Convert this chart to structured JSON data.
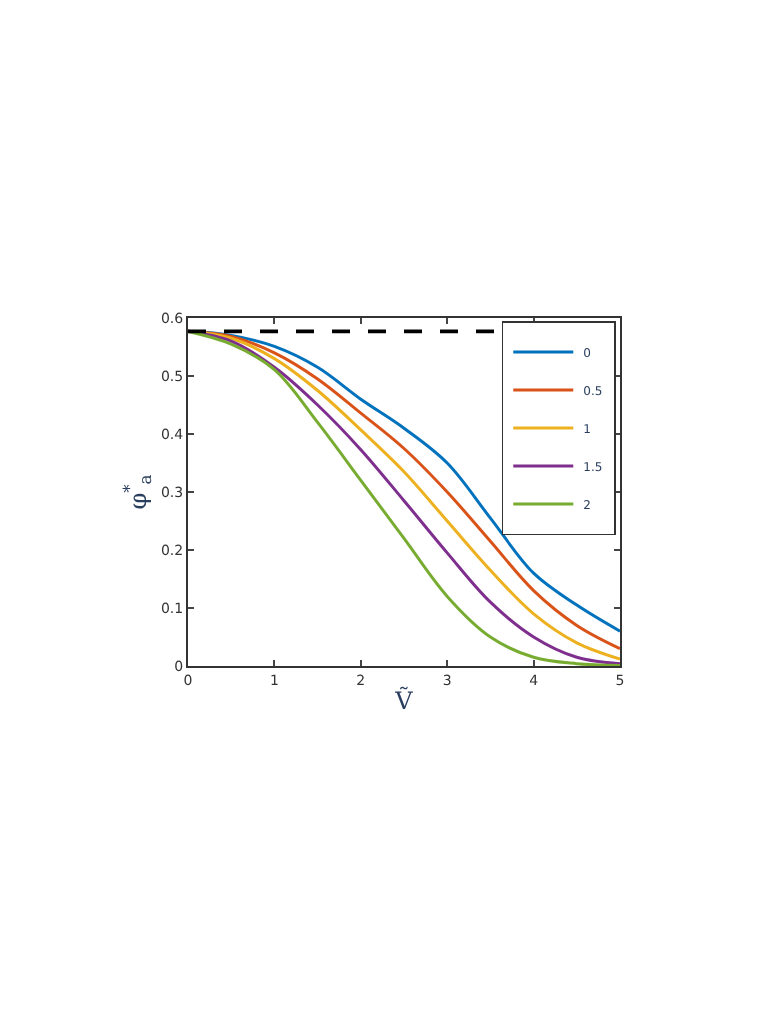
{
  "chart_data": {
    "type": "line",
    "xlabel": "Ṽ",
    "ylabel": "φ$^{*}$$_{a}$",
    "x": [
      0,
      0.5,
      1,
      1.5,
      2,
      2.5,
      3,
      3.5,
      4,
      4.5,
      5
    ],
    "series": [
      {
        "name": "0",
        "color": "#0072bd",
        "values": [
          0.577,
          0.57,
          0.551,
          0.515,
          0.46,
          0.41,
          0.35,
          0.255,
          0.16,
          0.105,
          0.06
        ]
      },
      {
        "name": "0.5",
        "color": "#d95319",
        "values": [
          0.577,
          0.568,
          0.54,
          0.495,
          0.436,
          0.375,
          0.3,
          0.215,
          0.13,
          0.07,
          0.03
        ]
      },
      {
        "name": "1",
        "color": "#edb120",
        "values": [
          0.577,
          0.565,
          0.53,
          0.475,
          0.407,
          0.335,
          0.25,
          0.165,
          0.09,
          0.04,
          0.012
        ]
      },
      {
        "name": "1.5",
        "color": "#7e2f8e",
        "values": [
          0.577,
          0.56,
          0.515,
          0.45,
          0.373,
          0.285,
          0.195,
          0.11,
          0.05,
          0.015,
          0.004
        ]
      },
      {
        "name": "2",
        "color": "#77ac30",
        "values": [
          0.577,
          0.555,
          0.511,
          0.42,
          0.32,
          0.22,
          0.12,
          0.05,
          0.015,
          0.004,
          0.001
        ]
      }
    ],
    "ref_lines": [
      {
        "axis": "y",
        "value": 0.577,
        "color": "#000000",
        "line_style": "dashed"
      }
    ],
    "xlim": [
      0,
      5
    ],
    "xticks": [
      0,
      1,
      2,
      3,
      4,
      5
    ],
    "ylim": [
      0,
      0.6
    ],
    "yticks": [
      0,
      0.1,
      0.2,
      0.3,
      0.4,
      0.5,
      0.6
    ],
    "legend": "top right",
    "marker": "none",
    "line_style": "solid"
  }
}
